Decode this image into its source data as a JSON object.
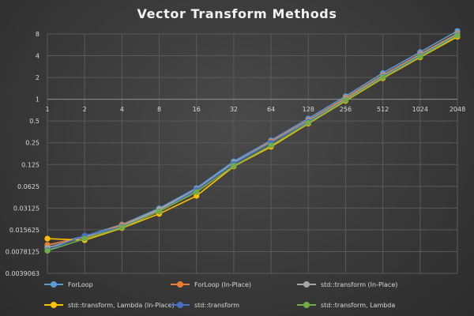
{
  "chart_data": {
    "type": "line",
    "title": "Vector Transform Methods",
    "xlabel": "",
    "ylabel": "",
    "x_scale": "log2",
    "y_scale": "log2",
    "categories": [
      "1",
      "2",
      "4",
      "8",
      "16",
      "32",
      "64",
      "128",
      "256",
      "512",
      "1024",
      "2048"
    ],
    "y_ticks": [
      "8",
      "4",
      "2",
      "1",
      "0.5",
      "0.25",
      "0.125",
      "0.0625",
      "0.03125",
      "0.015625",
      "0.0078125",
      "0.0039063"
    ],
    "y_tick_values": [
      8,
      4,
      2,
      1,
      0.5,
      0.25,
      0.125,
      0.0625,
      0.03125,
      0.015625,
      0.0078125,
      0.0039063
    ],
    "ylim": [
      0.0039063,
      8
    ],
    "grid": true,
    "legend_position": "bottom",
    "series": [
      {
        "name": "ForLoop",
        "color": "#5b9bd5",
        "values": [
          0.0095,
          0.0128,
          0.0185,
          0.031,
          0.059,
          0.138,
          0.27,
          0.54,
          1.1,
          2.3,
          4.5,
          8.8
        ]
      },
      {
        "name": "ForLoop (In-Place)",
        "color": "#ed7d31",
        "values": [
          0.0097,
          0.0123,
          0.0182,
          0.029,
          0.055,
          0.13,
          0.26,
          0.51,
          1.04,
          2.15,
          4.2,
          8.1
        ]
      },
      {
        "name": "std::transform (In-Place)",
        "color": "#a5a5a5",
        "values": [
          0.0088,
          0.0125,
          0.0175,
          0.03,
          0.057,
          0.132,
          0.25,
          0.5,
          1.0,
          2.1,
          4.1,
          7.9
        ]
      },
      {
        "name": "std::transform, Lambda (In-Place)",
        "color": "#ffc000",
        "values": [
          0.0118,
          0.0112,
          0.0165,
          0.026,
          0.046,
          0.118,
          0.22,
          0.46,
          0.95,
          1.95,
          3.8,
          7.3
        ]
      },
      {
        "name": "std::transform",
        "color": "#4472c4",
        "values": [
          0.0082,
          0.013,
          0.0172,
          0.028,
          0.056,
          0.128,
          0.25,
          0.49,
          0.98,
          2.05,
          4.0,
          7.7
        ]
      },
      {
        "name": "std::transform, Lambda",
        "color": "#70ad47",
        "values": [
          0.008,
          0.0118,
          0.0168,
          0.028,
          0.052,
          0.12,
          0.23,
          0.47,
          0.97,
          2.0,
          3.9,
          7.6
        ]
      }
    ]
  }
}
